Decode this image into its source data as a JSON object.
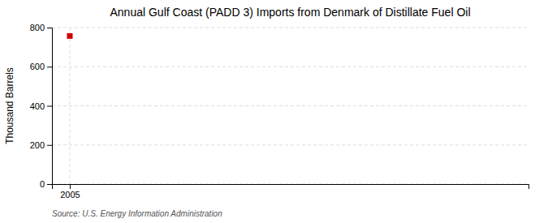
{
  "chart_data": {
    "type": "scatter",
    "title": "Annual Gulf Coast (PADD 3) Imports from Denmark of Distillate Fuel Oil",
    "ylabel": "Thousand Barrels",
    "annotations": [
      "Source: U.S. Energy Information Administration"
    ],
    "x": [
      2005
    ],
    "values": [
      757
    ],
    "color": "#cc0000",
    "marker": "square",
    "xlim": [
      2004.3,
      2023
    ],
    "ylim": [
      0,
      800
    ],
    "xticks": [
      2005
    ],
    "yticks": [
      0,
      200,
      400,
      600,
      800
    ],
    "grid": true
  }
}
